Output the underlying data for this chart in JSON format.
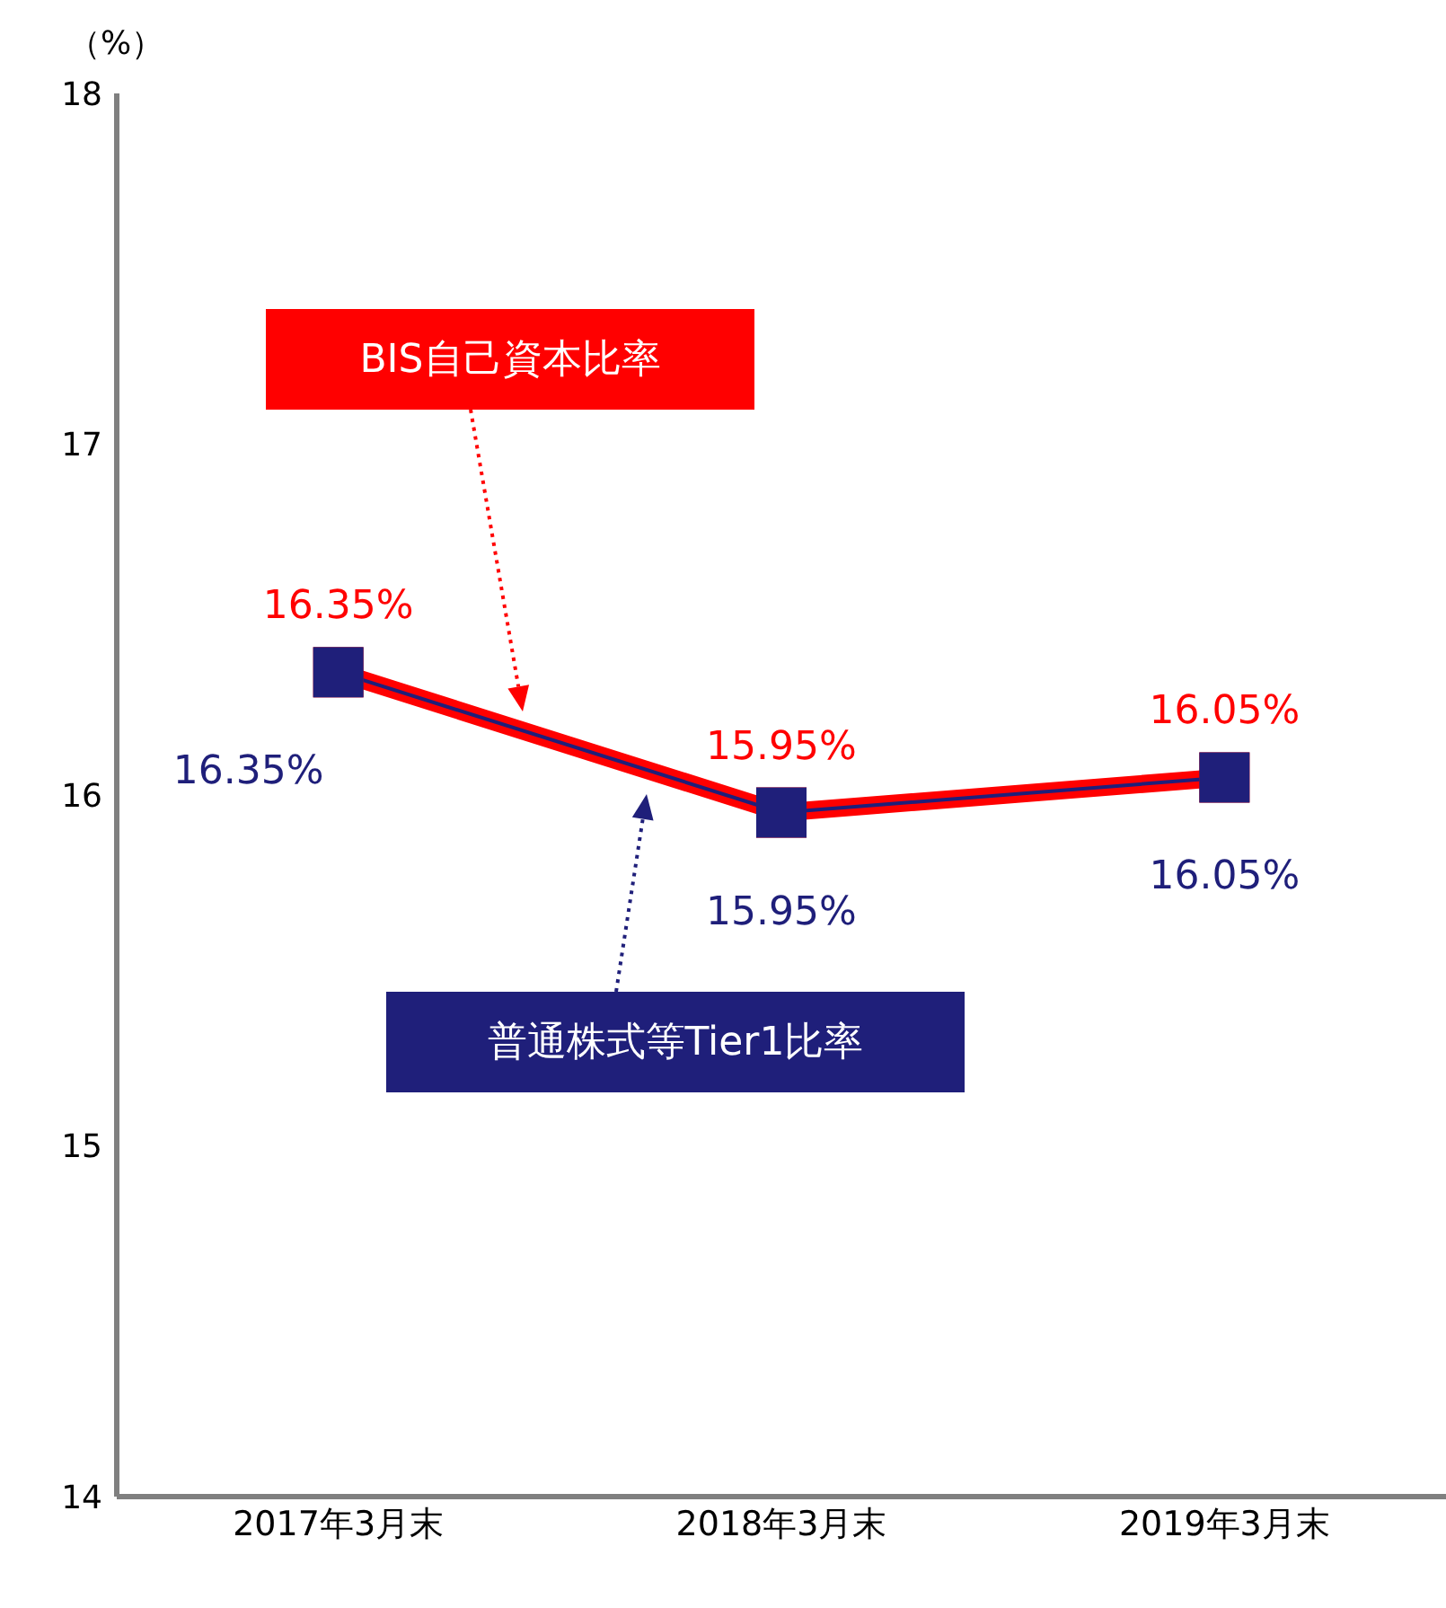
{
  "chart_data": {
    "type": "line",
    "ylabel": "（%）",
    "categories": [
      "2017年3月末",
      "2018年3月末",
      "2019年3月末"
    ],
    "ylim": [
      14,
      18
    ],
    "yticks": [
      14,
      15,
      16,
      17,
      18
    ],
    "marker": "square",
    "series": [
      {
        "name": "普通株式等Tier1比率",
        "color": "#1f1f7a",
        "values": [
          16.35,
          15.95,
          16.05
        ],
        "value_labels": [
          "16.35%",
          "15.95%",
          "16.05%"
        ]
      },
      {
        "name": "BIS自己資本比率",
        "color": "#ff0000",
        "values": [
          16.35,
          15.95,
          16.05
        ],
        "value_labels": [
          "16.35%",
          "15.95%",
          "16.05%"
        ]
      }
    ]
  }
}
